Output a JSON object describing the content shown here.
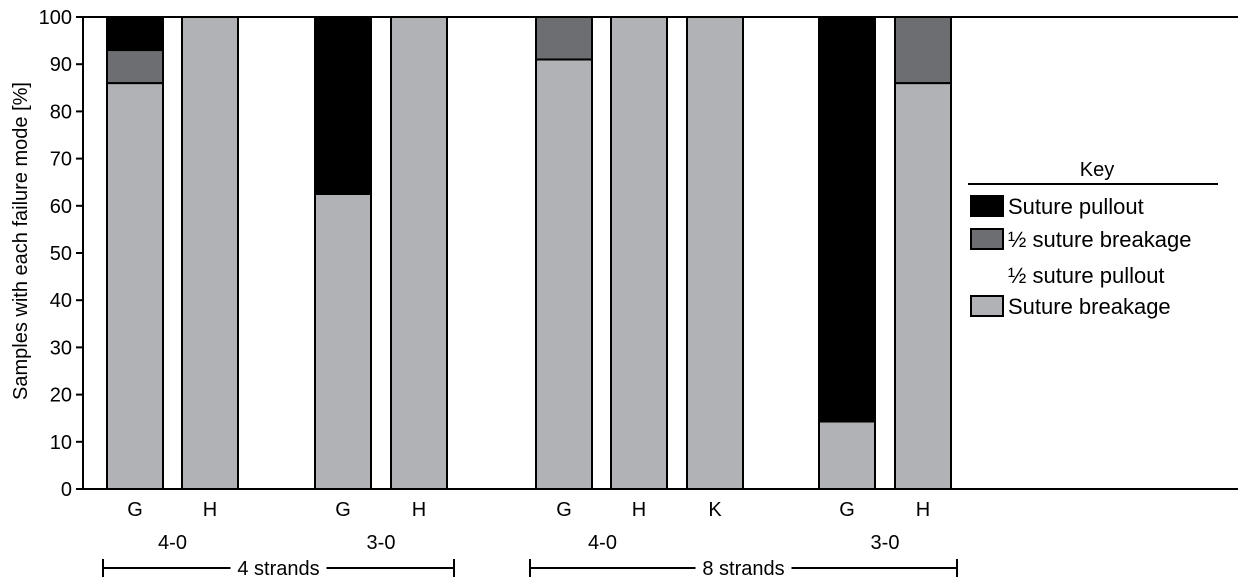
{
  "chart_data": {
    "type": "bar",
    "stacked": true,
    "ylabel": "Samples with each failure mode [%]",
    "ylim": [
      0,
      100
    ],
    "yticks": [
      0,
      10,
      20,
      30,
      40,
      50,
      60,
      70,
      80,
      90,
      100
    ],
    "grid": false,
    "legend_position": "right",
    "legend_title": "Key",
    "categories": [
      "G",
      "H",
      "G",
      "H",
      "G",
      "H",
      "K",
      "G",
      "H"
    ],
    "size_labels": [
      "4-0",
      "3-0",
      "4-0",
      "3-0"
    ],
    "strand_labels": [
      "4 strands",
      "8 strands"
    ],
    "series": [
      {
        "name": "Suture breakage",
        "color": "#b1b2b6",
        "values": [
          86,
          100,
          62.5,
          100,
          91,
          100,
          100,
          14.3,
          86
        ]
      },
      {
        "name": "½ suture breakage\n½ suture pullout",
        "color": "#6d6e71",
        "values": [
          7,
          0,
          0,
          0,
          9,
          0,
          0,
          0,
          14
        ]
      },
      {
        "name": "Suture pullout",
        "color": "#000000",
        "values": [
          7,
          0,
          37.5,
          0,
          0,
          0,
          0,
          85.7,
          0
        ]
      }
    ],
    "legend_order": [
      2,
      1,
      0
    ]
  }
}
